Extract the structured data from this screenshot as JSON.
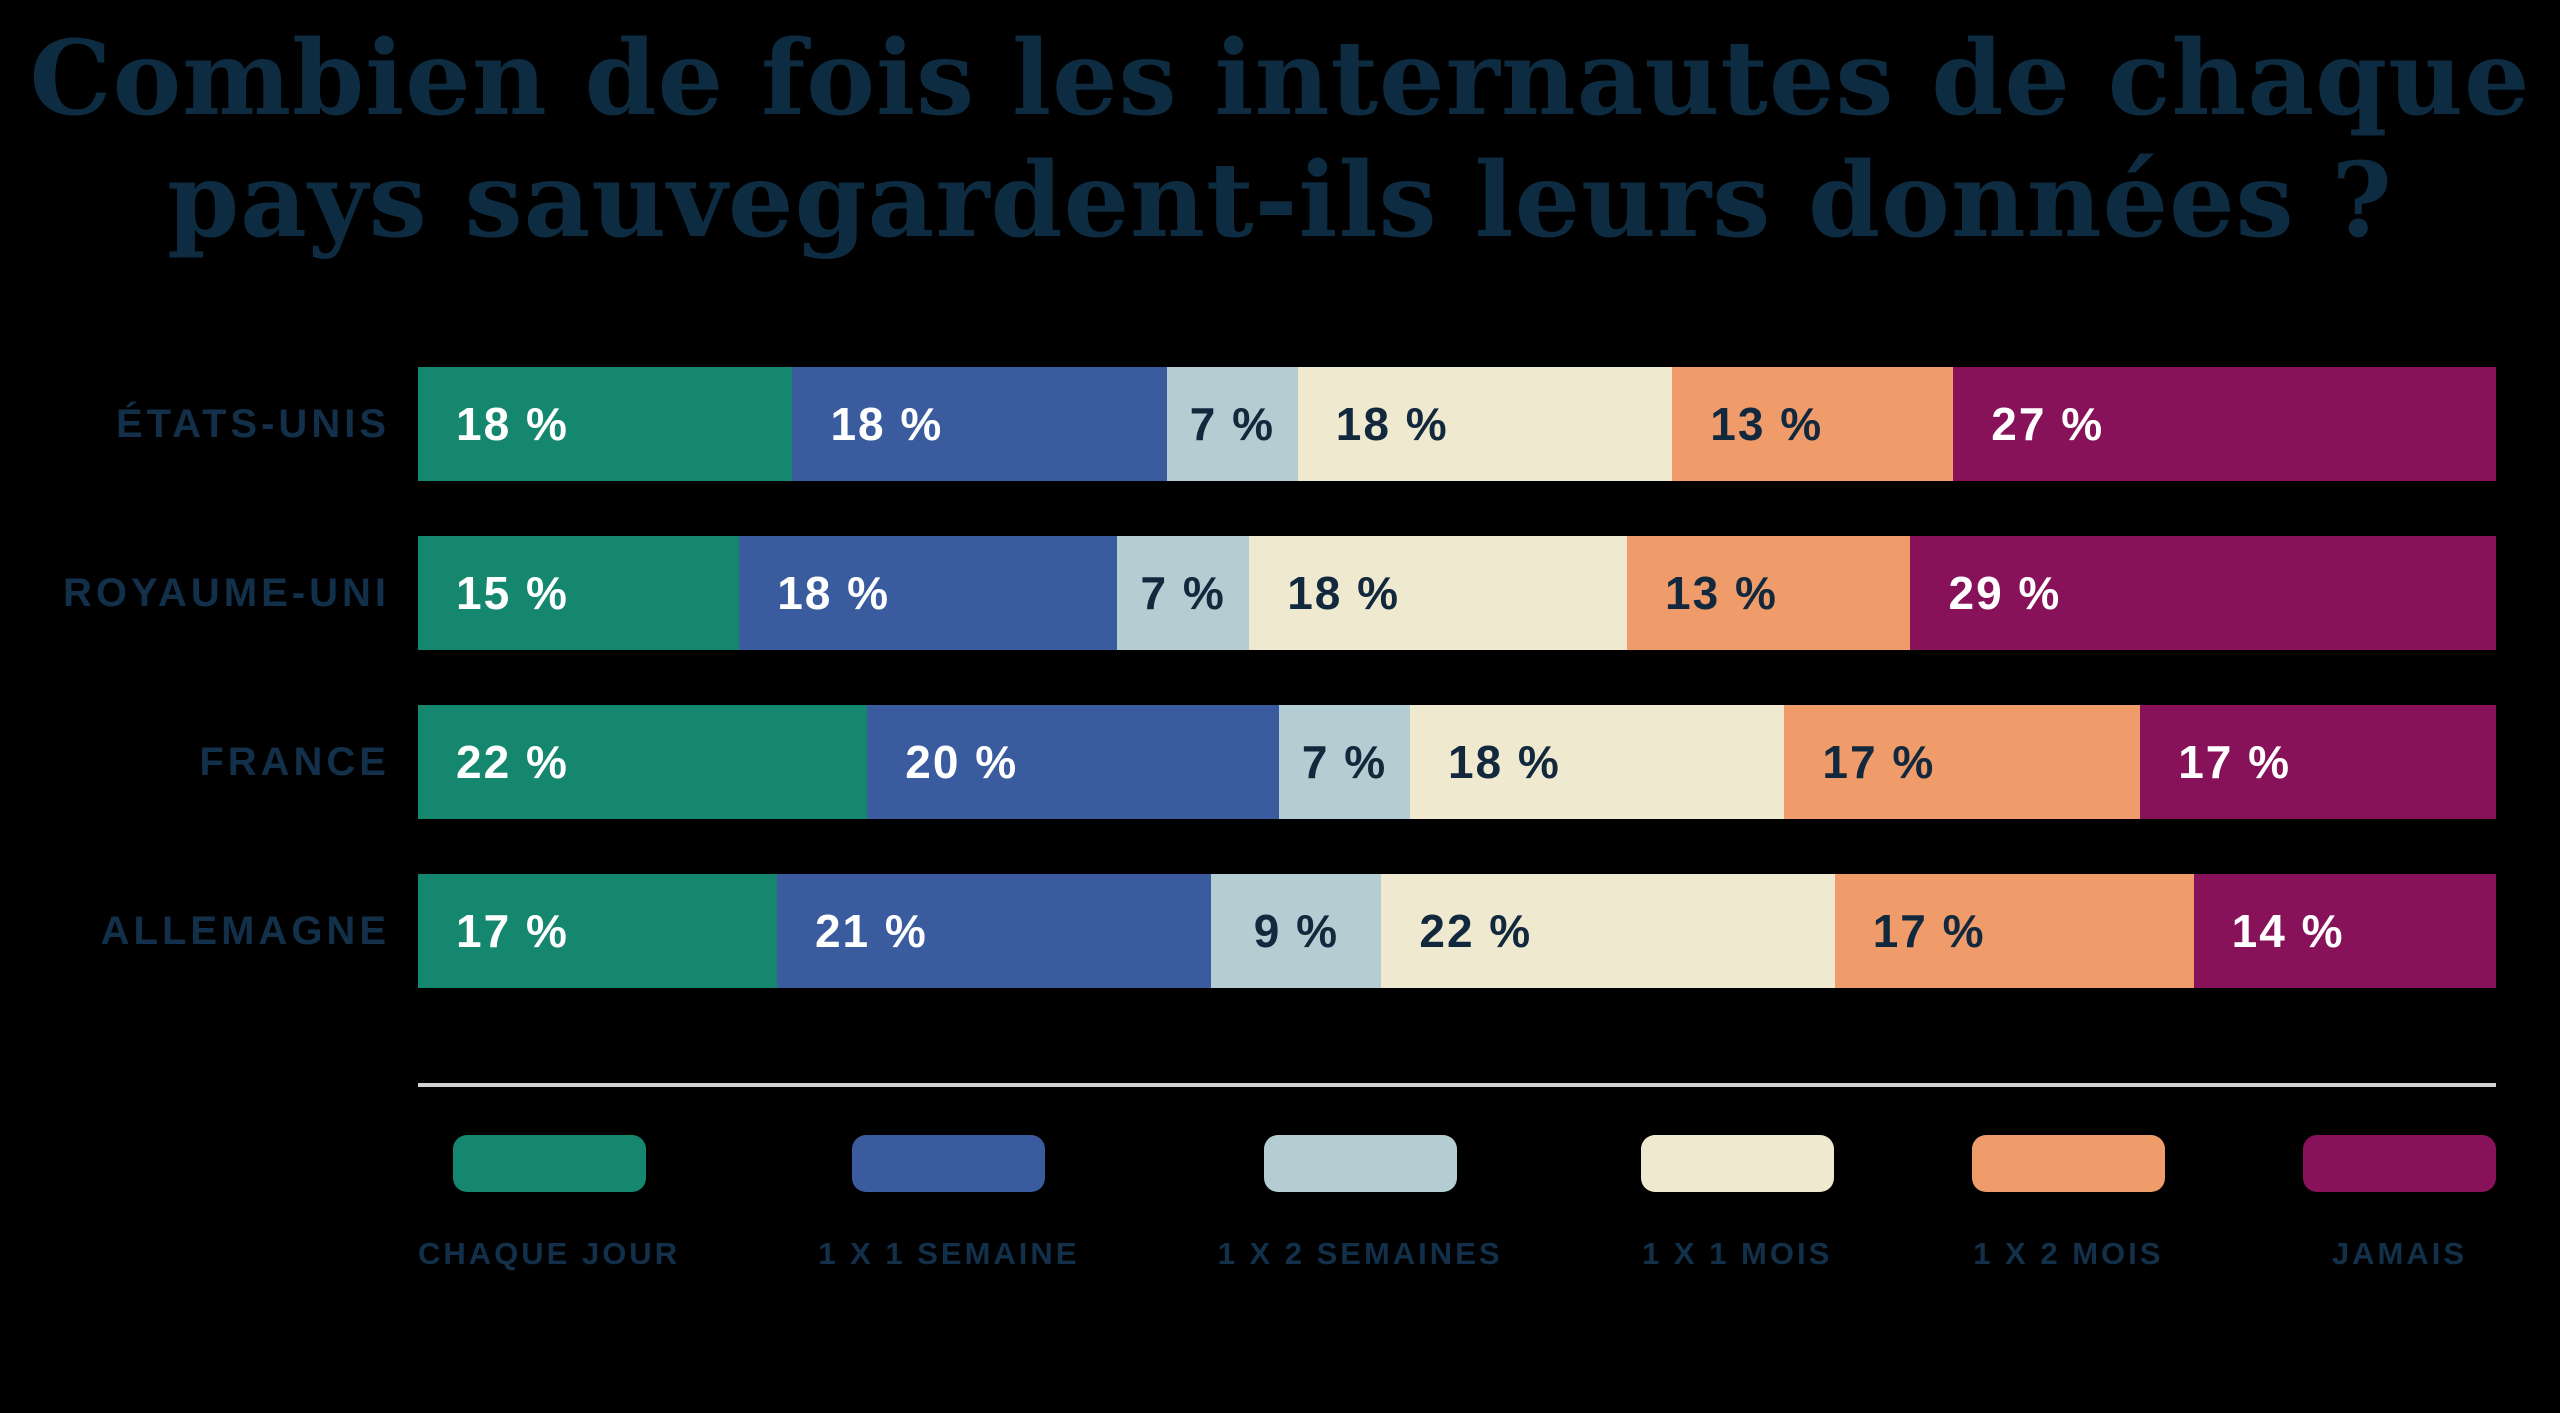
{
  "title": {
    "line1": "Combien de fois les internautes de chaque",
    "line2": "pays sauvegardent-ils leurs données ?"
  },
  "chart_data": {
    "type": "bar",
    "stacked": true,
    "orientation": "horizontal",
    "unit": "%",
    "title": "Combien de fois les internautes de chaque pays sauvegardent-ils leurs données ?",
    "categories": [
      "ÉTATS-UNIS",
      "ROYAUME-UNI",
      "FRANCE",
      "ALLEMAGNE"
    ],
    "series": [
      {
        "name": "CHAQUE JOUR",
        "color": "#14876E",
        "text_color": "#FFFFFF",
        "values": [
          18,
          15,
          22,
          17
        ]
      },
      {
        "name": "1 X 1 SEMAINE",
        "color": "#3A5C9E",
        "text_color": "#FFFFFF",
        "values": [
          18,
          18,
          20,
          21
        ]
      },
      {
        "name": "1 X 2 SEMAINES",
        "color": "#B4CDD2",
        "text_color": "#12283D",
        "values": [
          7,
          7,
          7,
          9
        ]
      },
      {
        "name": "1 X 1 MOIS",
        "color": "#EFE9D0",
        "text_color": "#12283D",
        "values": [
          18,
          18,
          18,
          22
        ]
      },
      {
        "name": "1 X 2 MOIS",
        "color": "#F09B6A",
        "text_color": "#12283D",
        "values": [
          13,
          13,
          17,
          17
        ]
      },
      {
        "name": "JAMAIS",
        "color": "#87125A",
        "text_color": "#FFFFFF",
        "values": [
          27,
          29,
          17,
          14
        ]
      }
    ],
    "value_label_format": "{v} %",
    "legend_position": "bottom",
    "grid": false
  },
  "colors": {
    "background": "#000000",
    "title_text": "#0D2C42",
    "label_text": "#123049",
    "separator": "#D2D2D2"
  }
}
